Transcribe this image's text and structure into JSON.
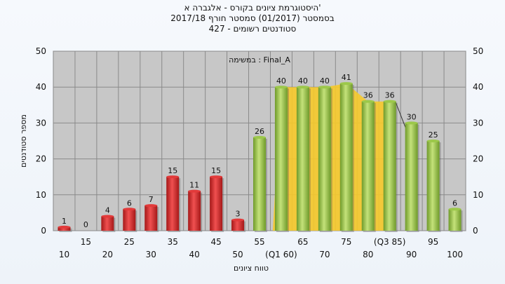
{
  "titles": {
    "line1": "היסטוגרמת ציונים בקורס - אלגברה א'",
    "line2": "בסמסטר  (01/2017)  סמסטר חורף 2017/18",
    "line3": "427 - סטודנטים רשומים"
  },
  "colors": {
    "fail": "#e23a3a",
    "pass": "#9cc84a",
    "iqr": "#f6c92a",
    "plot_bg": "#c7c7c7"
  },
  "chart_data": {
    "type": "bar",
    "title": "היסטוגרמת ציונים בקורס - אלגברה א'",
    "annotation": "במשימה : Final_A",
    "xlabel": "טווח ציונים",
    "ylabel": "מספר סטודנטים",
    "ylim": [
      0,
      50
    ],
    "yticks": [
      0,
      10,
      20,
      30,
      40,
      50
    ],
    "grid": true,
    "categories": [
      "10",
      "15",
      "20",
      "25",
      "30",
      "35",
      "40",
      "45",
      "50",
      "55",
      "60",
      "65",
      "70",
      "75",
      "80",
      "85",
      "90",
      "95",
      "100"
    ],
    "tick_labels": [
      "10",
      "15",
      "20",
      "25",
      "30",
      "35",
      "40",
      "45",
      "50",
      "55",
      "(Q1 60)",
      "65",
      "70",
      "75",
      "80",
      "(Q3 85)",
      "90",
      "95",
      "100"
    ],
    "values": [
      1,
      0,
      4,
      6,
      7,
      15,
      11,
      15,
      3,
      26,
      40,
      40,
      40,
      41,
      36,
      36,
      30,
      25,
      6
    ],
    "fail_threshold": 55,
    "q1": 60,
    "q3": 85
  }
}
